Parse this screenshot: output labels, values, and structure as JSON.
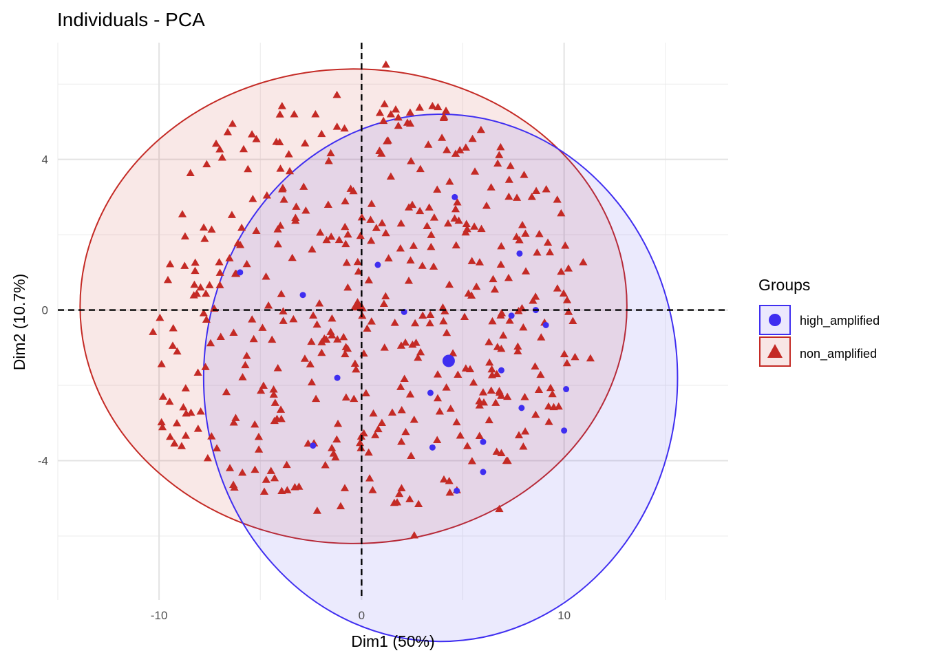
{
  "chart_data": {
    "type": "scatter",
    "title": "Individuals - PCA",
    "xlabel": "Dim1 (50%)",
    "ylabel": "Dim2 (10.7%)",
    "xlim": [
      -15.0,
      18.1
    ],
    "ylim": [
      -7.7,
      7.1
    ],
    "x_ticks": [
      -10,
      0,
      10
    ],
    "x_tick_labels": [
      "-10",
      "0",
      "10"
    ],
    "y_ticks": [
      -4,
      0,
      4
    ],
    "y_tick_labels": [
      "-4",
      "0",
      "4"
    ],
    "grid": true,
    "reference_lines": {
      "x": 0,
      "y": 0,
      "style": "dashed"
    },
    "legend": {
      "title": "Groups",
      "placement": "right",
      "entries": [
        "high_amplified",
        "non_amplified"
      ]
    },
    "series": [
      {
        "name": "high_amplified",
        "color": "#3f2ef0",
        "marker": "circle",
        "centroid": [
          4.3,
          -1.35
        ],
        "ellipse": {
          "center": [
            3.9,
            -1.8
          ],
          "rx": 11.7,
          "ry": 7.0
        },
        "points": [
          [
            4.6,
            3.0
          ],
          [
            7.8,
            1.5
          ],
          [
            0.8,
            1.2
          ],
          [
            -2.9,
            0.4
          ],
          [
            -6.0,
            1.0
          ],
          [
            2.1,
            -0.05
          ],
          [
            7.4,
            -0.15
          ],
          [
            8.6,
            0.0
          ],
          [
            9.1,
            -0.4
          ],
          [
            -1.2,
            -1.8
          ],
          [
            6.9,
            -1.6
          ],
          [
            3.4,
            -2.2
          ],
          [
            10.1,
            -2.1
          ],
          [
            7.9,
            -2.6
          ],
          [
            6.0,
            -3.5
          ],
          [
            3.5,
            -3.65
          ],
          [
            10.0,
            -3.2
          ],
          [
            -2.4,
            -3.6
          ],
          [
            6.0,
            -4.3
          ],
          [
            4.7,
            -4.8
          ]
        ]
      },
      {
        "name": "non_amplified",
        "color": "#c42a25",
        "marker": "triangle",
        "centroid": [
          -0.2,
          0.1
        ],
        "ellipse": {
          "center": [
            -0.4,
            0.1
          ],
          "rx": 13.5,
          "ry": 6.3
        }
      }
    ]
  }
}
